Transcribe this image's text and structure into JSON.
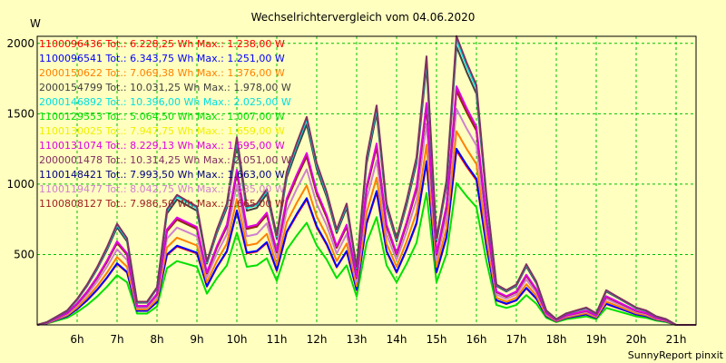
{
  "chart_data": {
    "type": "line",
    "title": "Wechselrichtervergleich vom 04.06.2020",
    "ylabel": "W",
    "footer": "SunnyReport pinxit",
    "xlim": [
      5.0,
      21.5
    ],
    "ylim": [
      0,
      2050
    ],
    "x_ticks": [
      6,
      7,
      8,
      9,
      10,
      11,
      12,
      13,
      14,
      15,
      16,
      17,
      18,
      19,
      20,
      21
    ],
    "x_tick_labels": [
      "6h",
      "7h",
      "8h",
      "9h",
      "10h",
      "11h",
      "12h",
      "13h",
      "14h",
      "15h",
      "16h",
      "17h",
      "18h",
      "19h",
      "20h",
      "21h"
    ],
    "y_ticks": [
      500,
      1000,
      1500,
      2000
    ],
    "y_tick_labels": [
      "500",
      "1000",
      "1500",
      "2000"
    ],
    "grid": true,
    "legend_position": "top-left",
    "x": [
      5.0,
      5.25,
      5.5,
      5.75,
      6.0,
      6.25,
      6.5,
      6.75,
      7.0,
      7.25,
      7.5,
      7.75,
      8.0,
      8.25,
      8.5,
      8.75,
      9.0,
      9.25,
      9.5,
      9.75,
      10.0,
      10.25,
      10.5,
      10.75,
      11.0,
      11.25,
      11.5,
      11.75,
      12.0,
      12.25,
      12.5,
      12.75,
      13.0,
      13.25,
      13.5,
      13.75,
      14.0,
      14.25,
      14.5,
      14.75,
      15.0,
      15.25,
      15.5,
      15.75,
      16.0,
      16.25,
      16.5,
      16.75,
      17.0,
      17.25,
      17.5,
      17.75,
      18.0,
      18.25,
      18.5,
      18.75,
      19.0,
      19.25,
      19.5,
      19.75,
      20.0,
      20.25,
      20.5,
      20.75,
      21.0,
      21.25,
      21.5
    ],
    "profile": [
      0,
      0.01,
      0.03,
      0.05,
      0.09,
      0.14,
      0.2,
      0.27,
      0.35,
      0.3,
      0.08,
      0.08,
      0.13,
      0.4,
      0.45,
      0.43,
      0.41,
      0.22,
      0.33,
      0.42,
      0.65,
      0.41,
      0.42,
      0.47,
      0.31,
      0.53,
      0.63,
      0.72,
      0.56,
      0.46,
      0.33,
      0.42,
      0.2,
      0.58,
      0.76,
      0.42,
      0.3,
      0.43,
      0.58,
      0.93,
      0.3,
      0.5,
      1.0,
      0.91,
      0.83,
      0.45,
      0.14,
      0.12,
      0.14,
      0.21,
      0.15,
      0.05,
      0.02,
      0.04,
      0.05,
      0.06,
      0.04,
      0.12,
      0.1,
      0.08,
      0.06,
      0.05,
      0.03,
      0.02,
      0.0,
      0.0,
      0.0
    ],
    "series": [
      {
        "name": "1100096436 Tot.: 6.228,25 Wh Max.: 1.238,00 W",
        "color": "#ff0000",
        "peak": 1238
      },
      {
        "name": "1100096541 Tot.: 6.343,75 Wh Max.: 1.251,00 W",
        "color": "#0000ff",
        "peak": 1251
      },
      {
        "name": "2000150622 Tot.: 7.069,38 Wh Max.: 1.376,00 W",
        "color": "#ff8000",
        "peak": 1376
      },
      {
        "name": "2000154799 Tot.: 10.031,25 Wh Max.: 1.978,00 W",
        "color": "#404040",
        "peak": 1978
      },
      {
        "name": "2000146892 Tot.: 10.396,00 Wh Max.: 2.025,00 W",
        "color": "#00e0e0",
        "peak": 2025
      },
      {
        "name": "1100129553 Tot.: 5.064,50 Wh Max.: 1.007,00 W",
        "color": "#00e000",
        "peak": 1007
      },
      {
        "name": "1100130025 Tot.: 7.947,75 Wh Max.: 1.659,00 W",
        "color": "#f0f000",
        "peak": 1659
      },
      {
        "name": "1100131074 Tot.: 8.229,13 Wh Max.: 1.695,00 W",
        "color": "#e000e0",
        "peak": 1695
      },
      {
        "name": "2000001478 Tot.: 10.314,25 Wh Max.: 2.051,00 W",
        "color": "#803060",
        "peak": 2051
      },
      {
        "name": "1100148421 Tot.: 7.993,50 Wh Max.: 1.663,00 W",
        "color": "#000080",
        "peak": 1663
      },
      {
        "name": "1100119477 Tot.: 8.042,75 Wh Max.: 1.535,00 W",
        "color": "#d080d0",
        "peak": 1535
      },
      {
        "name": "1100808127 Tot.: 7.986,50 Wh Max.: 1.665,00 W",
        "color": "#a02020",
        "peak": 1665
      }
    ]
  }
}
